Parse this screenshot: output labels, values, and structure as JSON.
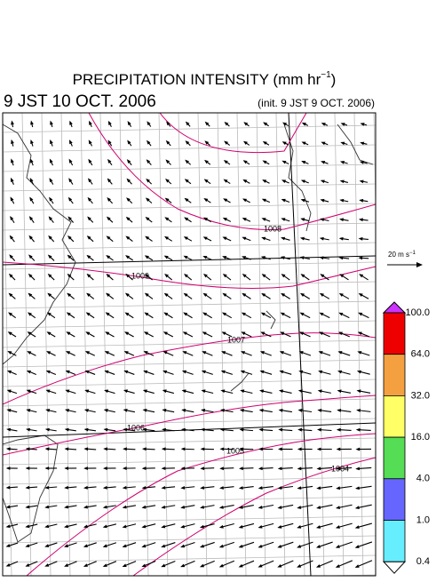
{
  "header": {
    "title": {
      "text": "PRECIPITATION INTENSITY (mm hr",
      "superscript": "−1",
      "suffix": ")"
    },
    "valid_time": "9 JST 10 OCT. 2006",
    "init_time": "(init. 9 JST 9 OCT. 2006)"
  },
  "isobars": [
    {
      "label": "1008"
    },
    {
      "label": "1006"
    },
    {
      "label": "1007"
    },
    {
      "label": "1006"
    },
    {
      "label": "1005"
    },
    {
      "label": "1004"
    }
  ],
  "vector_legend": {
    "text": "20 m s",
    "superscript": "−1"
  },
  "colorbar": {
    "levels": [
      "100.0",
      "64.0",
      "32.0",
      "16.0",
      "4.0",
      "1.0",
      "0.4"
    ],
    "colors": [
      "#ee0000",
      "#f5a040",
      "#ffff66",
      "#55dd55",
      "#6666ff",
      "#66eeff"
    ],
    "over_color": "#cc33ff",
    "under_color": "#ffffff"
  }
}
